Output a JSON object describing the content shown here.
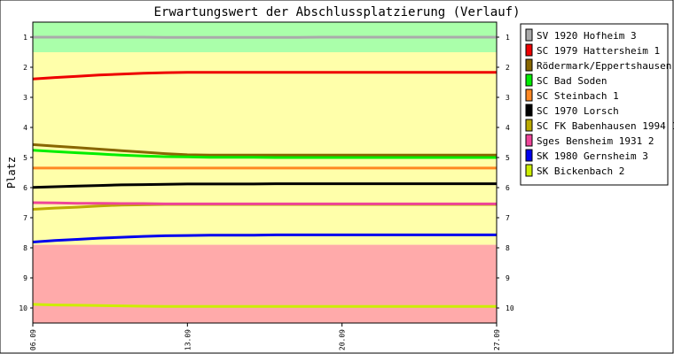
{
  "chart_data": {
    "type": "line",
    "title": "Erwartungswert der Abschlussplatzierung (Verlauf)",
    "xlabel": "",
    "ylabel": "Platz",
    "ylim": [
      10.5,
      0.5
    ],
    "yticks": [
      "1",
      "2",
      "3",
      "4",
      "5",
      "6",
      "7",
      "8",
      "9",
      "10"
    ],
    "x_tick_labels": [
      "06.09",
      "13.09",
      "20.09",
      "27.09"
    ],
    "x": [
      "06.09",
      "07.09",
      "08.09",
      "09.09",
      "10.09",
      "11.09",
      "12.09",
      "13.09",
      "14.09",
      "15.09",
      "16.09",
      "17.09",
      "18.09",
      "19.09",
      "20.09",
      "21.09",
      "22.09",
      "23.09",
      "24.09",
      "25.09",
      "26.09",
      "27.09"
    ],
    "zones": [
      {
        "from": 0.5,
        "to": 1.5,
        "color": "#aaffaa"
      },
      {
        "from": 1.5,
        "to": 7.9,
        "color": "#ffffaa"
      },
      {
        "from": 7.9,
        "to": 10.5,
        "color": "#ffaaaa"
      }
    ],
    "legend_position": "right",
    "series": [
      {
        "name": "SV 1920 Hofheim 3",
        "color": "#aaaaaa",
        "values": [
          1.0,
          1.0,
          1.0,
          1.0,
          1.0,
          1.0,
          1.01,
          1.01,
          1.01,
          1.01,
          1.01,
          1.01,
          1.01,
          1.0,
          1.0,
          1.0,
          1.0,
          1.0,
          1.0,
          1.0,
          1.0,
          1.0
        ]
      },
      {
        "name": "SC 1979 Hattersheim 1",
        "color": "#ee0000",
        "values": [
          2.39,
          2.34,
          2.3,
          2.26,
          2.23,
          2.2,
          2.18,
          2.17,
          2.17,
          2.17,
          2.17,
          2.17,
          2.17,
          2.17,
          2.17,
          2.17,
          2.17,
          2.17,
          2.17,
          2.17,
          2.17,
          2.17
        ]
      },
      {
        "name": "Rödermark/Eppertshausen",
        "color": "#886600",
        "values": [
          4.57,
          4.62,
          4.67,
          4.72,
          4.77,
          4.82,
          4.87,
          4.91,
          4.92,
          4.92,
          4.92,
          4.92,
          4.92,
          4.92,
          4.92,
          4.92,
          4.92,
          4.92,
          4.92,
          4.92,
          4.92,
          4.92
        ]
      },
      {
        "name": "SC Bad Soden",
        "color": "#00ee00",
        "values": [
          4.76,
          4.8,
          4.84,
          4.88,
          4.92,
          4.95,
          4.97,
          4.98,
          4.99,
          4.99,
          4.99,
          5.0,
          5.0,
          5.0,
          5.0,
          5.0,
          5.0,
          5.0,
          5.0,
          5.0,
          5.0,
          5.0
        ]
      },
      {
        "name": "SC Steinbach 1",
        "color": "#ff8822",
        "values": [
          5.35,
          5.35,
          5.35,
          5.35,
          5.35,
          5.35,
          5.35,
          5.35,
          5.35,
          5.35,
          5.35,
          5.35,
          5.35,
          5.35,
          5.35,
          5.35,
          5.35,
          5.35,
          5.35,
          5.35,
          5.35,
          5.35
        ]
      },
      {
        "name": "SC 1970 Lorsch",
        "color": "#000000",
        "values": [
          5.99,
          5.97,
          5.95,
          5.93,
          5.91,
          5.9,
          5.89,
          5.88,
          5.88,
          5.88,
          5.88,
          5.87,
          5.87,
          5.87,
          5.87,
          5.87,
          5.87,
          5.87,
          5.87,
          5.87,
          5.87,
          5.87
        ]
      },
      {
        "name": "SC FK Babenhausen 1994 1",
        "color": "#bbaa00",
        "values": [
          6.72,
          6.68,
          6.65,
          6.61,
          6.58,
          6.57,
          6.56,
          6.56,
          6.56,
          6.56,
          6.56,
          6.56,
          6.56,
          6.56,
          6.56,
          6.56,
          6.56,
          6.56,
          6.56,
          6.56,
          6.56,
          6.56
        ]
      },
      {
        "name": "Sges Bensheim 1931 2",
        "color": "#ee4499",
        "values": [
          6.5,
          6.51,
          6.52,
          6.52,
          6.53,
          6.53,
          6.54,
          6.54,
          6.54,
          6.54,
          6.54,
          6.54,
          6.54,
          6.54,
          6.54,
          6.54,
          6.54,
          6.54,
          6.54,
          6.54,
          6.54,
          6.54
        ]
      },
      {
        "name": "SK 1980 Gernsheim 3",
        "color": "#0000ee",
        "values": [
          7.81,
          7.76,
          7.72,
          7.68,
          7.65,
          7.62,
          7.6,
          7.59,
          7.58,
          7.58,
          7.58,
          7.57,
          7.57,
          7.57,
          7.57,
          7.57,
          7.57,
          7.57,
          7.57,
          7.57,
          7.57,
          7.57
        ]
      },
      {
        "name": "SK Bickenbach 2",
        "color": "#ccee00",
        "values": [
          9.88,
          9.9,
          9.91,
          9.92,
          9.93,
          9.94,
          9.95,
          9.95,
          9.95,
          9.95,
          9.95,
          9.95,
          9.95,
          9.95,
          9.95,
          9.95,
          9.95,
          9.95,
          9.95,
          9.95,
          9.95,
          9.95
        ]
      }
    ]
  }
}
